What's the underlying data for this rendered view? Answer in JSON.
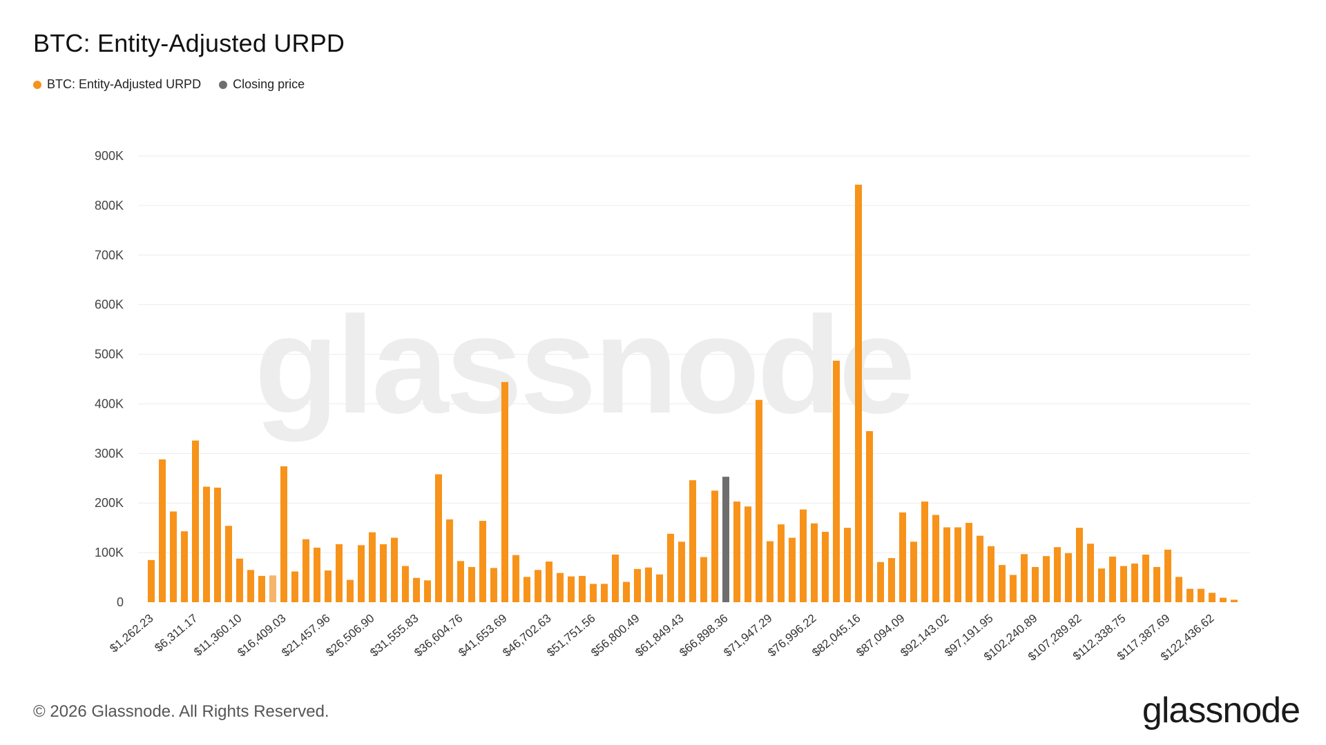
{
  "title": "BTC: Entity-Adjusted URPD",
  "legend": [
    {
      "label": "BTC: Entity-Adjusted URPD",
      "color": "#f7931a"
    },
    {
      "label": "Closing price",
      "color": "#6e6e6e"
    }
  ],
  "footer": {
    "copyright": "© 2026 Glassnode. All Rights Reserved.",
    "brand": "glassnode"
  },
  "watermark": "glassnode",
  "chart_data": {
    "type": "bar",
    "title": "BTC: Entity-Adjusted URPD",
    "xlabel": "",
    "ylabel": "",
    "ylim": [
      0,
      900000
    ],
    "y_ticks": [
      "0",
      "100K",
      "200K",
      "300K",
      "400K",
      "500K",
      "600K",
      "700K",
      "800K",
      "900K"
    ],
    "x_tick_labels": [
      "$1,262.23",
      "$6,311.17",
      "$11,360.10",
      "$16,409.03",
      "$21,457.96",
      "$26,506.90",
      "$31,555.83",
      "$36,604.76",
      "$41,653.69",
      "$46,702.63",
      "$51,751.56",
      "$56,800.49",
      "$61,849.43",
      "$66,898.36",
      "$71,947.29",
      "$76,996.22",
      "$82,045.16",
      "$87,094.09",
      "$92,143.02",
      "$97,191.95",
      "$102,240.89",
      "$107,289.82",
      "$112,338.75",
      "$117,387.69",
      "$122,436.62"
    ],
    "x_tick_every": 4,
    "grid": true,
    "legend_position": "top-left",
    "colors": {
      "urpd": "#f7931a",
      "closing_price": "#6e6e6e",
      "highlight": "#f5b36b"
    },
    "closing_price_index": 52,
    "highlight_index": 11,
    "series": [
      {
        "name": "BTC: Entity-Adjusted URPD",
        "values": [
          85000,
          288000,
          183000,
          143000,
          326000,
          233000,
          231000,
          154000,
          88000,
          65000,
          53000,
          54000,
          274000,
          62000,
          127000,
          110000,
          64000,
          117000,
          45000,
          115000,
          141000,
          117000,
          130000,
          73000,
          49000,
          44000,
          258000,
          167000,
          83000,
          71000,
          164000,
          69000,
          444000,
          95000,
          51000,
          65000,
          82000,
          59000,
          52000,
          53000,
          37000,
          37000,
          96000,
          41000,
          67000,
          70000,
          56000,
          138000,
          122000,
          246000,
          91000,
          225000,
          253000,
          203000,
          193000,
          408000,
          123000,
          157000,
          130000,
          187000,
          159000,
          142000,
          487000,
          150000,
          842000,
          345000,
          81000,
          89000,
          181000,
          122000,
          203000,
          176000,
          151000,
          151000,
          160000,
          134000,
          113000,
          75000,
          55000,
          97000,
          71000,
          93000,
          111000,
          99000,
          150000,
          118000,
          68000,
          92000,
          73000,
          78000,
          96000,
          71000,
          106000,
          51000,
          27000,
          27000,
          19000,
          9000,
          5000
        ]
      }
    ]
  }
}
